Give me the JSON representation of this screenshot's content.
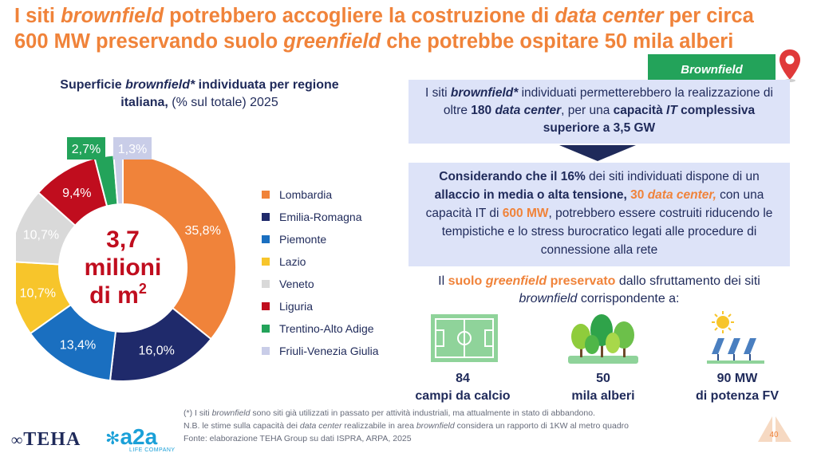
{
  "title": {
    "line1_a": "I siti ",
    "line1_b": "brownfield",
    "line1_c": " potrebbero accogliere la costruzione di ",
    "line1_d": "data center",
    "line1_e": "  per circa",
    "line2_a": "600 MW preservando suolo ",
    "line2_b": "greenfield",
    "line2_c": " che potrebbe ospitare 50 mila alberi"
  },
  "chart_title": {
    "part1": "Superficie ",
    "part2": "brownfield*",
    "part3": "  individuata per regione",
    "part4": "italiana,",
    "part5": " (% sul totale) 2025"
  },
  "chart_data": {
    "type": "pie",
    "categories": [
      "Lombardia",
      "Emilia-Romagna",
      "Piemonte",
      "Lazio",
      "Veneto",
      "Liguria",
      "Trentino-Alto Adige",
      "Friuli-Venezia Giulia"
    ],
    "values": [
      35.8,
      16.0,
      13.4,
      10.7,
      10.7,
      9.4,
      2.7,
      1.3
    ],
    "labels": [
      "35,8%",
      "16,0%",
      "13,4%",
      "10,7%",
      "10,7%",
      "9,4%",
      "2,7%",
      "1,3%"
    ],
    "colors": [
      "#f0833a",
      "#1f2a6b",
      "#1a6fc0",
      "#f7c52b",
      "#d9d9d9",
      "#c00d1e",
      "#23a35a",
      "#c9cde8"
    ],
    "center_line1": "3,7",
    "center_line2": "milioni",
    "center_line3": "di m",
    "center_sup": "2",
    "legend_position": "right"
  },
  "brownfield_tag": "Brownfield",
  "box1": {
    "a": "I siti ",
    "b": "brownfield*",
    "c": " individuati permetterebbero la realizzazione di oltre ",
    "d": "180 ",
    "e": "data center",
    "f": ", per una ",
    "g": "capacità ",
    "h": "IT",
    "i": " complessiva superiore a 3,5 GW"
  },
  "box2": {
    "a": "Considerando che il 16%",
    "b": " dei siti individuati dispone di un ",
    "c": "allaccio in media o alta tensione, ",
    "d": "30 ",
    "e": "data center,",
    "f": " con una capacità IT di ",
    "g": "600 MW",
    "h": ", potrebbero essere costruiti riducendo le tempistiche e lo stress burocratico legati alle procedure di connessione alla rete"
  },
  "greenfield_text": {
    "a": "Il ",
    "b": "suolo ",
    "c": "greenfield",
    "d": " preservato",
    "e": " dallo sfruttamento dei siti ",
    "f": "brownfield",
    "g": " corrispondente a:"
  },
  "kpis": [
    {
      "value": "84",
      "label": "campi da calcio"
    },
    {
      "value": "50",
      "label": "mila alberi"
    },
    {
      "value": "90 MW",
      "label": "di potenza FV"
    }
  ],
  "notes": {
    "n1a": "(*) I siti ",
    "n1b": "brownfield",
    "n1c": " sono siti già utilizzati in passato per attività industriali, ma attualmente in stato di abbandono.",
    "n2a": "N.B. le stime sulla capacità dei ",
    "n2b": "data center",
    "n2c": " realizzabile in area ",
    "n2d": "brownfield",
    "n2e": " considera un rapporto di 1KW al metro quadro",
    "n3": "Fonte: elaborazione TEHA Group su dati ISPRA, ARPA, 2025"
  },
  "logos": {
    "teha": "TEHA",
    "a2a": "a2a",
    "a2a_sub": "LIFE COMPANY"
  },
  "page_number": "40"
}
